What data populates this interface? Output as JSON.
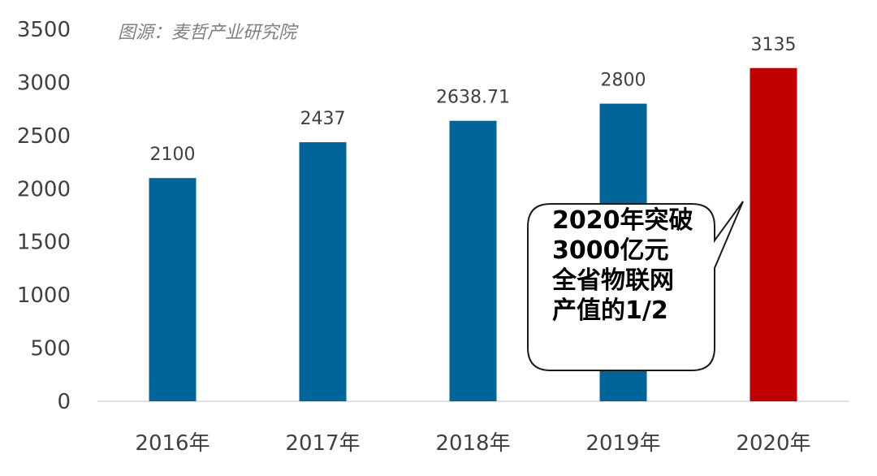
{
  "source_note": "图源：麦哲产业研究院",
  "chart_data": {
    "type": "bar",
    "categories": [
      "2016年",
      "2017年",
      "2018年",
      "2019年",
      "2020年"
    ],
    "values": [
      2100,
      2437,
      2638.71,
      2800,
      3135
    ],
    "value_labels": [
      "2100",
      "2437",
      "2638.71",
      "2800",
      "3135"
    ],
    "ylim": [
      0,
      3500
    ],
    "yticks": [
      "0",
      "500",
      "1000",
      "1500",
      "2000",
      "2500",
      "3000",
      "3500"
    ],
    "grid": false,
    "colors": {
      "bar": "#006699",
      "highlight": "#c00000",
      "axis": "#d9d9d9"
    },
    "highlight_index": 4,
    "annotation": {
      "lines": [
        "2020年突破",
        "3000亿元",
        "全省物联网",
        "产值的1/2"
      ]
    }
  }
}
